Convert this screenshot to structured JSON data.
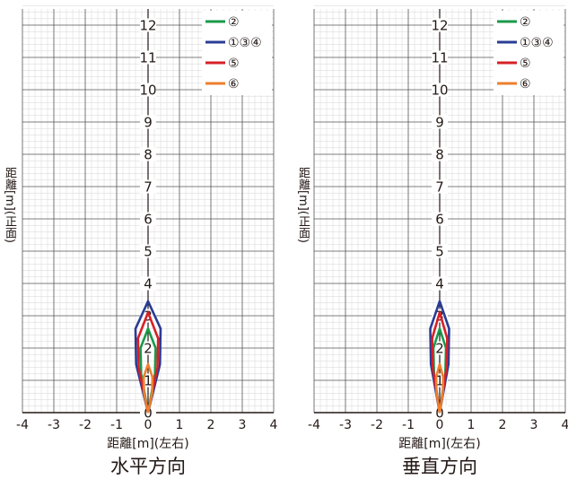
{
  "chart_data": [
    {
      "type": "line",
      "title": "水平方向",
      "xlabel": "距離[m](左右)",
      "ylabel": "距離[m](正面)",
      "xlim": [
        -4,
        4
      ],
      "ylim": [
        0,
        12.5
      ],
      "x_ticks": [
        "-4",
        "-3",
        "-2",
        "-1",
        "0",
        "1",
        "2",
        "3",
        "4"
      ],
      "y_ticks": [
        "0",
        "1",
        "2",
        "3",
        "4",
        "5",
        "6",
        "7",
        "8",
        "9",
        "10",
        "11",
        "12"
      ],
      "grid": true,
      "legend": "top-right",
      "series": [
        {
          "name": "②",
          "color": "#1a9a4a",
          "x": [
            0,
            0.22,
            0.24,
            0,
            -0.24,
            -0.22,
            0
          ],
          "y": [
            0,
            1.2,
            2.0,
            2.6,
            2.0,
            1.2,
            0
          ]
        },
        {
          "name": "①③④",
          "color": "#2a3c94",
          "x": [
            0,
            0.38,
            0.4,
            0,
            -0.4,
            -0.38,
            0
          ],
          "y": [
            0,
            1.5,
            2.6,
            3.45,
            2.6,
            1.5,
            0
          ]
        },
        {
          "name": "⑤",
          "color": "#d62027",
          "x": [
            0,
            0.3,
            0.32,
            0,
            -0.32,
            -0.3,
            0
          ],
          "y": [
            0,
            1.4,
            2.3,
            3.1,
            2.3,
            1.4,
            0
          ]
        },
        {
          "name": "⑥",
          "color": "#ee7f2e",
          "x": [
            0,
            0.13,
            0.14,
            0,
            -0.14,
            -0.13,
            0
          ],
          "y": [
            0,
            0.6,
            1.1,
            1.5,
            1.1,
            0.6,
            0
          ]
        }
      ]
    },
    {
      "type": "line",
      "title": "垂直方向",
      "xlabel": "距離[m](左右)",
      "ylabel": "距離[m](正面)",
      "xlim": [
        -4,
        4
      ],
      "ylim": [
        0,
        12.5
      ],
      "x_ticks": [
        "-4",
        "-3",
        "-2",
        "-1",
        "0",
        "1",
        "2",
        "3",
        "4"
      ],
      "y_ticks": [
        "0",
        "1",
        "2",
        "3",
        "4",
        "5",
        "6",
        "7",
        "8",
        "9",
        "10",
        "11",
        "12"
      ],
      "grid": true,
      "legend": "top-right",
      "series": [
        {
          "name": "②",
          "color": "#1a9a4a",
          "x": [
            0,
            0.18,
            0.2,
            0,
            -0.2,
            -0.18,
            0
          ],
          "y": [
            0,
            1.2,
            2.0,
            2.6,
            2.0,
            1.2,
            0
          ]
        },
        {
          "name": "①③④",
          "color": "#2a3c94",
          "x": [
            0,
            0.28,
            0.3,
            0,
            -0.3,
            -0.28,
            0
          ],
          "y": [
            0,
            1.5,
            2.6,
            3.45,
            2.6,
            1.5,
            0
          ]
        },
        {
          "name": "⑤",
          "color": "#d62027",
          "x": [
            0,
            0.22,
            0.24,
            0,
            -0.24,
            -0.22,
            0
          ],
          "y": [
            0,
            1.4,
            2.3,
            3.1,
            2.3,
            1.4,
            0
          ]
        },
        {
          "name": "⑥",
          "color": "#ee7f2e",
          "x": [
            0,
            0.1,
            0.11,
            0,
            -0.11,
            -0.1,
            0
          ],
          "y": [
            0,
            0.6,
            1.1,
            1.5,
            1.1,
            0.6,
            0
          ]
        }
      ]
    }
  ]
}
